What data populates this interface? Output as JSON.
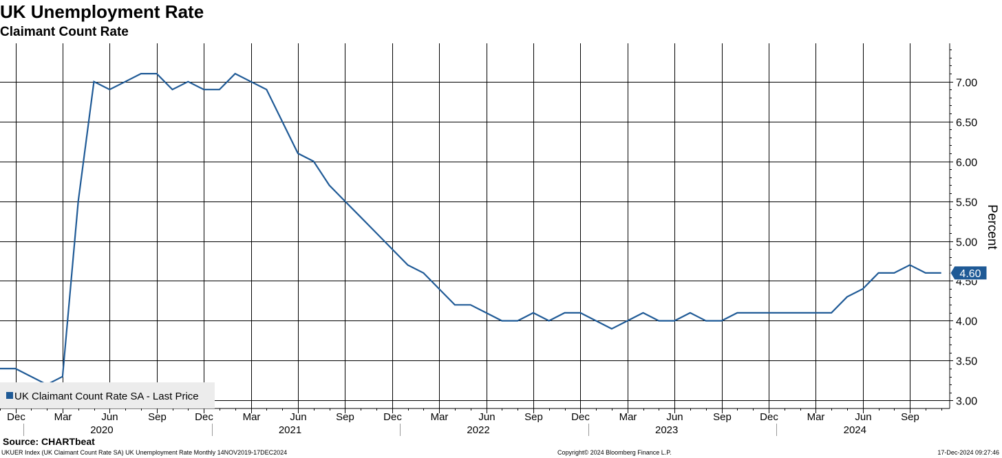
{
  "header": {
    "title": "UK Unemployment Rate",
    "subtitle": "Claimant Count Rate"
  },
  "footer": {
    "source": "Source: CHARTbeat",
    "note": "UKUER Index (UK Claimant Count Rate SA) UK Unemployment Rate  Monthly 14NOV2019-17DEC2024",
    "copyright": "Copyright© 2024 Bloomberg Finance L.P.",
    "date": "17-Dec-2024 09:27:46"
  },
  "colors": {
    "series": "#1f5a96",
    "grid": "#000000",
    "legend_bg": "#ececec"
  },
  "chart_data": {
    "type": "line",
    "ylabel": "Percent",
    "ylim": [
      2.9,
      7.48
    ],
    "yticks": [
      "3.00",
      "3.50",
      "4.00",
      "4.50",
      "5.00",
      "5.50",
      "6.00",
      "6.50",
      "7.00"
    ],
    "grid": true,
    "legend_position": "bottom-left",
    "last_value_label": "4.60",
    "x_month_ticks": [
      "Dec",
      "Mar",
      "Jun",
      "Sep",
      "Dec",
      "Mar",
      "Jun",
      "Sep",
      "Dec",
      "Mar",
      "Jun",
      "Sep",
      "Dec",
      "Mar",
      "Jun",
      "Sep",
      "Dec",
      "Mar",
      "Jun",
      "Sep"
    ],
    "x_year_labels": [
      "2020",
      "2021",
      "2022",
      "2023",
      "2024"
    ],
    "x": [
      "2019-11",
      "2019-12",
      "2020-01",
      "2020-02",
      "2020-03",
      "2020-04",
      "2020-05",
      "2020-06",
      "2020-07",
      "2020-08",
      "2020-09",
      "2020-10",
      "2020-11",
      "2020-12",
      "2021-01",
      "2021-02",
      "2021-03",
      "2021-04",
      "2021-05",
      "2021-06",
      "2021-07",
      "2021-08",
      "2021-09",
      "2021-10",
      "2021-11",
      "2021-12",
      "2022-01",
      "2022-02",
      "2022-03",
      "2022-04",
      "2022-05",
      "2022-06",
      "2022-07",
      "2022-08",
      "2022-09",
      "2022-10",
      "2022-11",
      "2022-12",
      "2023-01",
      "2023-02",
      "2023-03",
      "2023-04",
      "2023-05",
      "2023-06",
      "2023-07",
      "2023-08",
      "2023-09",
      "2023-10",
      "2023-11",
      "2023-12",
      "2024-01",
      "2024-02",
      "2024-03",
      "2024-04",
      "2024-05",
      "2024-06",
      "2024-07",
      "2024-08",
      "2024-09",
      "2024-10",
      "2024-11"
    ],
    "series": [
      {
        "name": "UK Claimant Count Rate SA - Last Price",
        "values": [
          3.4,
          3.4,
          3.3,
          3.2,
          3.3,
          5.5,
          7.0,
          6.9,
          7.0,
          7.1,
          7.1,
          6.9,
          7.0,
          6.9,
          6.9,
          7.1,
          7.0,
          6.9,
          6.5,
          6.1,
          6.0,
          5.7,
          5.5,
          5.3,
          5.1,
          4.9,
          4.7,
          4.6,
          4.4,
          4.2,
          4.2,
          4.1,
          4.0,
          4.0,
          4.1,
          4.0,
          4.1,
          4.1,
          4.0,
          3.9,
          4.0,
          4.1,
          4.0,
          4.0,
          4.1,
          4.0,
          4.0,
          4.1,
          4.1,
          4.1,
          4.1,
          4.1,
          4.1,
          4.1,
          4.3,
          4.4,
          4.6,
          4.6,
          4.7,
          4.6,
          4.6
        ]
      }
    ]
  }
}
